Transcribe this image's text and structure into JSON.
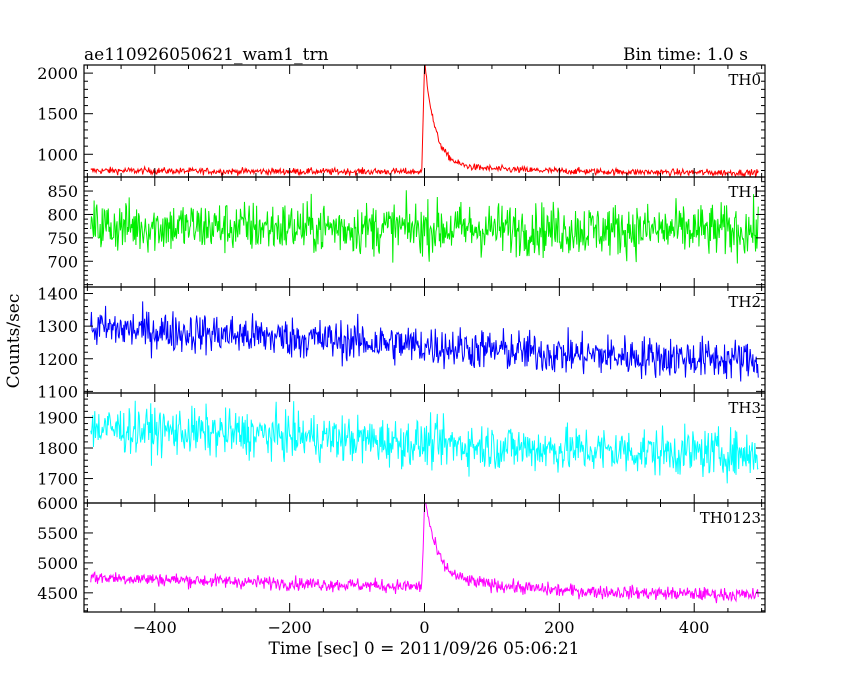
{
  "header": {
    "left": "ae110926050621_wam1_trn",
    "right": "Bin time: 1.0 s"
  },
  "chart_data": {
    "type": "line",
    "title": "ae110926050621_wam1_trn",
    "subtitle": "Bin time: 1.0 s",
    "xlabel": "Time [sec] 0 = 2011/09/26 05:06:21",
    "ylabel": "Counts/sec",
    "xlim": [
      -505,
      505
    ],
    "x_ticks": [
      -400,
      -200,
      0,
      200,
      400
    ],
    "x_tick_labels": [
      "−400",
      "−200",
      "0",
      "200",
      "400"
    ],
    "grid": false,
    "panels": [
      {
        "name": "TH0",
        "color": "#ff0000",
        "ylim": [
          720,
          2100
        ],
        "y_ticks": [
          1000,
          1500,
          2000
        ],
        "y_tick_labels": [
          "1000",
          "1500",
          "2000"
        ],
        "x_range": [
          -495,
          495
        ],
        "baseline": [
          [
            -495,
            800
          ],
          [
            -300,
            790
          ],
          [
            0,
            785
          ],
          [
            300,
            775
          ],
          [
            495,
            770
          ]
        ],
        "noise": 30,
        "spike": {
          "x": 0,
          "rise": 4,
          "peak": 2100,
          "decay": 15,
          "tail": 90,
          "tail_decay": 120
        }
      },
      {
        "name": "TH1",
        "color": "#00ee00",
        "ylim": [
          645,
          880
        ],
        "y_ticks": [
          700,
          750,
          800,
          850
        ],
        "y_tick_labels": [
          "700",
          "750",
          "800",
          "850"
        ],
        "x_range": [
          -495,
          495
        ],
        "baseline": [
          [
            -495,
            775
          ],
          [
            0,
            770
          ],
          [
            495,
            765
          ]
        ],
        "noise": 40,
        "spike": null
      },
      {
        "name": "TH2",
        "color": "#0000ff",
        "ylim": [
          1095,
          1420
        ],
        "y_ticks": [
          1100,
          1200,
          1300,
          1400
        ],
        "y_tick_labels": [
          "1100",
          "1200",
          "1300",
          "1400"
        ],
        "x_range": [
          -495,
          495
        ],
        "baseline": [
          [
            -495,
            1295
          ],
          [
            -200,
            1265
          ],
          [
            0,
            1240
          ],
          [
            200,
            1215
          ],
          [
            495,
            1195
          ]
        ],
        "noise": 45,
        "spike": null
      },
      {
        "name": "TH3",
        "color": "#00ffff",
        "ylim": [
          1620,
          1980
        ],
        "y_ticks": [
          1700,
          1800,
          1900
        ],
        "y_tick_labels": [
          "1700",
          "1800",
          "1900"
        ],
        "x_range": [
          -495,
          495
        ],
        "baseline": [
          [
            -495,
            1865
          ],
          [
            -200,
            1840
          ],
          [
            0,
            1815
          ],
          [
            200,
            1795
          ],
          [
            495,
            1780
          ]
        ],
        "noise": 55,
        "spike": null
      },
      {
        "name": "TH0123",
        "color": "#ff00ff",
        "ylim": [
          4180,
          6000
        ],
        "y_ticks": [
          4500,
          5000,
          5500,
          6000
        ],
        "y_tick_labels": [
          "4500",
          "5000",
          "5500",
          "6000"
        ],
        "x_range": [
          -495,
          495
        ],
        "baseline": [
          [
            -495,
            4760
          ],
          [
            -200,
            4660
          ],
          [
            0,
            4600
          ],
          [
            200,
            4510
          ],
          [
            495,
            4460
          ]
        ],
        "noise": 80,
        "spike": {
          "x": 0,
          "rise": 4,
          "peak": 6000,
          "decay": 16,
          "tail": 200,
          "tail_decay": 110
        }
      }
    ]
  }
}
